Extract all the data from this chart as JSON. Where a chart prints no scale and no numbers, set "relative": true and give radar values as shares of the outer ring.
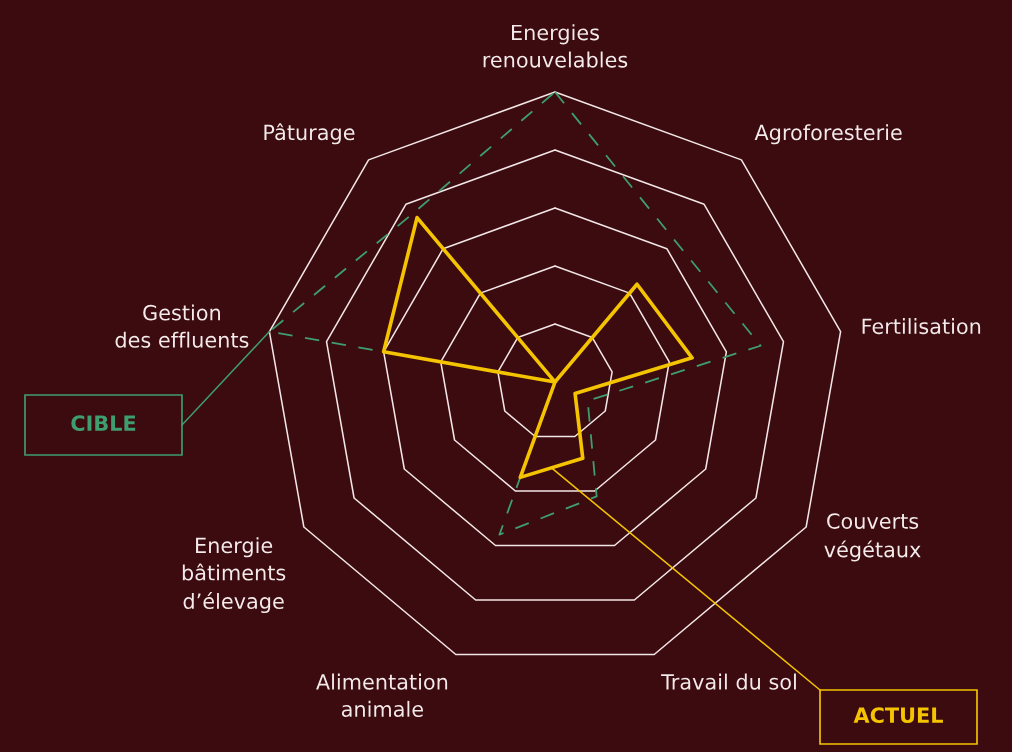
{
  "chart_data": {
    "type": "radar",
    "relative": true,
    "grid": true,
    "marker": "none",
    "categories": [
      "Energies\nrenouvelables",
      "Agroforesterie",
      "Fertilisation",
      "Couverts\nvégétaux",
      "Travail du sol",
      "Alimentation\nanimale",
      "Energie\nbâtiments\nd’élevage",
      "Gestion\ndes effluents",
      "Pâturage"
    ],
    "series": [
      {
        "name": "CIBLE",
        "color": "#3f9e6e",
        "line_style": "dashed",
        "values": [
          1.0,
          0.64,
          0.72,
          0.13,
          0.42,
          0.56,
          0,
          1.0,
          0.76
        ]
      },
      {
        "name": "ACTUEL",
        "color": "#f5c400",
        "line_style": "solid",
        "values": [
          0,
          0.44,
          0.48,
          0.08,
          0.28,
          0.35,
          0,
          0.6,
          0.74
        ]
      }
    ]
  }
}
